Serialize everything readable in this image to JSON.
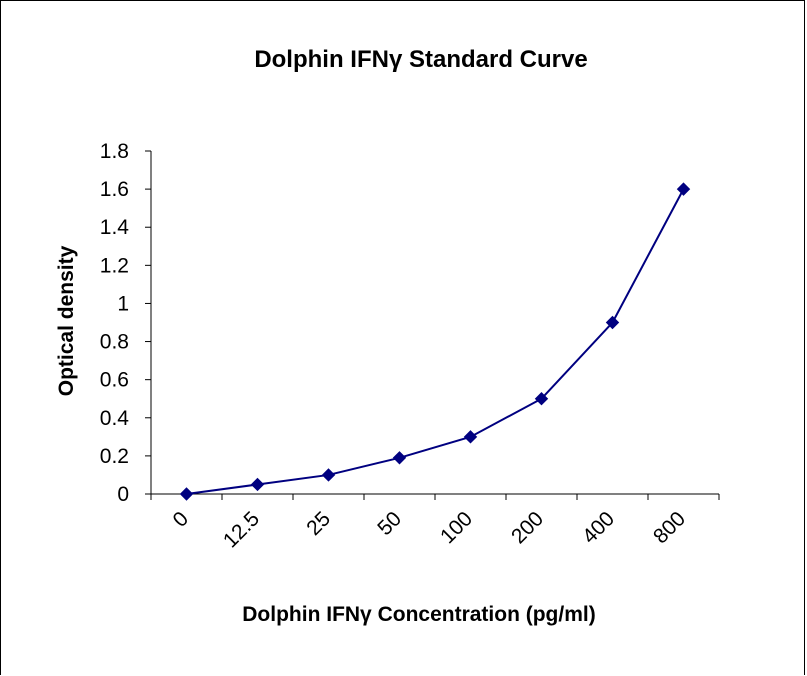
{
  "chart_data": {
    "type": "line",
    "title": "Dolphin IFNγ Standard Curve",
    "xlabel": "Dolphin IFNγ Concentration (pg/ml)",
    "ylabel": "Optical density",
    "categories": [
      "0",
      "12.5",
      "25",
      "50",
      "100",
      "200",
      "400",
      "800"
    ],
    "series": [
      {
        "values": [
          0,
          0.05,
          0.1,
          0.19,
          0.3,
          0.5,
          0.9,
          1.6
        ]
      }
    ],
    "ylim": [
      0,
      1.8
    ],
    "yticks": [
      "0",
      "0.2",
      "0.4",
      "0.6",
      "0.8",
      "1",
      "1.2",
      "1.4",
      "1.6",
      "1.8"
    ],
    "grid": false,
    "legend": "none",
    "marker": "diamond",
    "colors": {
      "series": "#000080",
      "axis": "#000000",
      "text": "#000000"
    }
  }
}
